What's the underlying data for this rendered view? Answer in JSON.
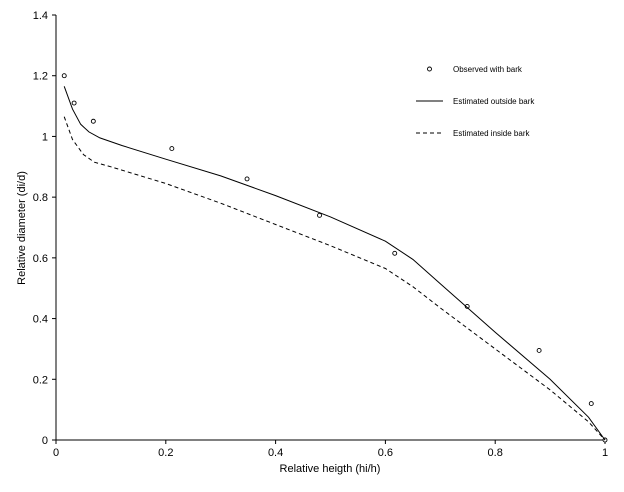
{
  "chart_data": {
    "type": "line",
    "title": "",
    "xlabel": "Relative heigth  (hi/h)",
    "ylabel": "Relative diameter  (di/d)",
    "xlim": [
      0,
      1
    ],
    "ylim": [
      0,
      1.4
    ],
    "xticks": [
      0,
      0.2,
      0.4,
      0.6,
      0.8,
      1
    ],
    "xtick_labels": [
      "0",
      "0.2",
      "0.4",
      "0.6",
      "0.8",
      "1"
    ],
    "yticks": [
      0,
      0.2,
      0.4,
      0.6,
      0.8,
      1,
      1.2,
      1.4
    ],
    "ytick_labels": [
      "0",
      "0.2",
      "0.4",
      "0.6",
      "0.8",
      "1",
      "1.2",
      "1.4"
    ],
    "grid": false,
    "legend_position": "top-right",
    "series": [
      {
        "name": "Observed with bark",
        "style": "markers",
        "color": "#000000",
        "points": [
          [
            0.015,
            1.2
          ],
          [
            0.033,
            1.11
          ],
          [
            0.068,
            1.05
          ],
          [
            0.211,
            0.96
          ],
          [
            0.348,
            0.86
          ],
          [
            0.48,
            0.74
          ],
          [
            0.617,
            0.615
          ],
          [
            0.749,
            0.44
          ],
          [
            0.88,
            0.295
          ],
          [
            0.975,
            0.12
          ],
          [
            1.0,
            0.0
          ]
        ]
      },
      {
        "name": "Estimated outside bark",
        "style": "solid",
        "color": "#000000",
        "points": [
          [
            0.015,
            1.165
          ],
          [
            0.03,
            1.09
          ],
          [
            0.045,
            1.04
          ],
          [
            0.06,
            1.015
          ],
          [
            0.08,
            0.995
          ],
          [
            0.12,
            0.97
          ],
          [
            0.2,
            0.925
          ],
          [
            0.3,
            0.87
          ],
          [
            0.4,
            0.805
          ],
          [
            0.5,
            0.735
          ],
          [
            0.6,
            0.655
          ],
          [
            0.65,
            0.595
          ],
          [
            0.7,
            0.515
          ],
          [
            0.8,
            0.355
          ],
          [
            0.9,
            0.2
          ],
          [
            0.97,
            0.075
          ],
          [
            1.0,
            0.0
          ]
        ]
      },
      {
        "name": "Estimated inside bark",
        "style": "dashed",
        "color": "#000000",
        "points": [
          [
            0.015,
            1.065
          ],
          [
            0.03,
            0.99
          ],
          [
            0.05,
            0.94
          ],
          [
            0.07,
            0.915
          ],
          [
            0.1,
            0.9
          ],
          [
            0.2,
            0.845
          ],
          [
            0.3,
            0.78
          ],
          [
            0.4,
            0.71
          ],
          [
            0.5,
            0.64
          ],
          [
            0.6,
            0.565
          ],
          [
            0.65,
            0.505
          ],
          [
            0.7,
            0.435
          ],
          [
            0.8,
            0.3
          ],
          [
            0.9,
            0.165
          ],
          [
            0.97,
            0.06
          ],
          [
            1.0,
            0.0
          ]
        ]
      }
    ]
  }
}
